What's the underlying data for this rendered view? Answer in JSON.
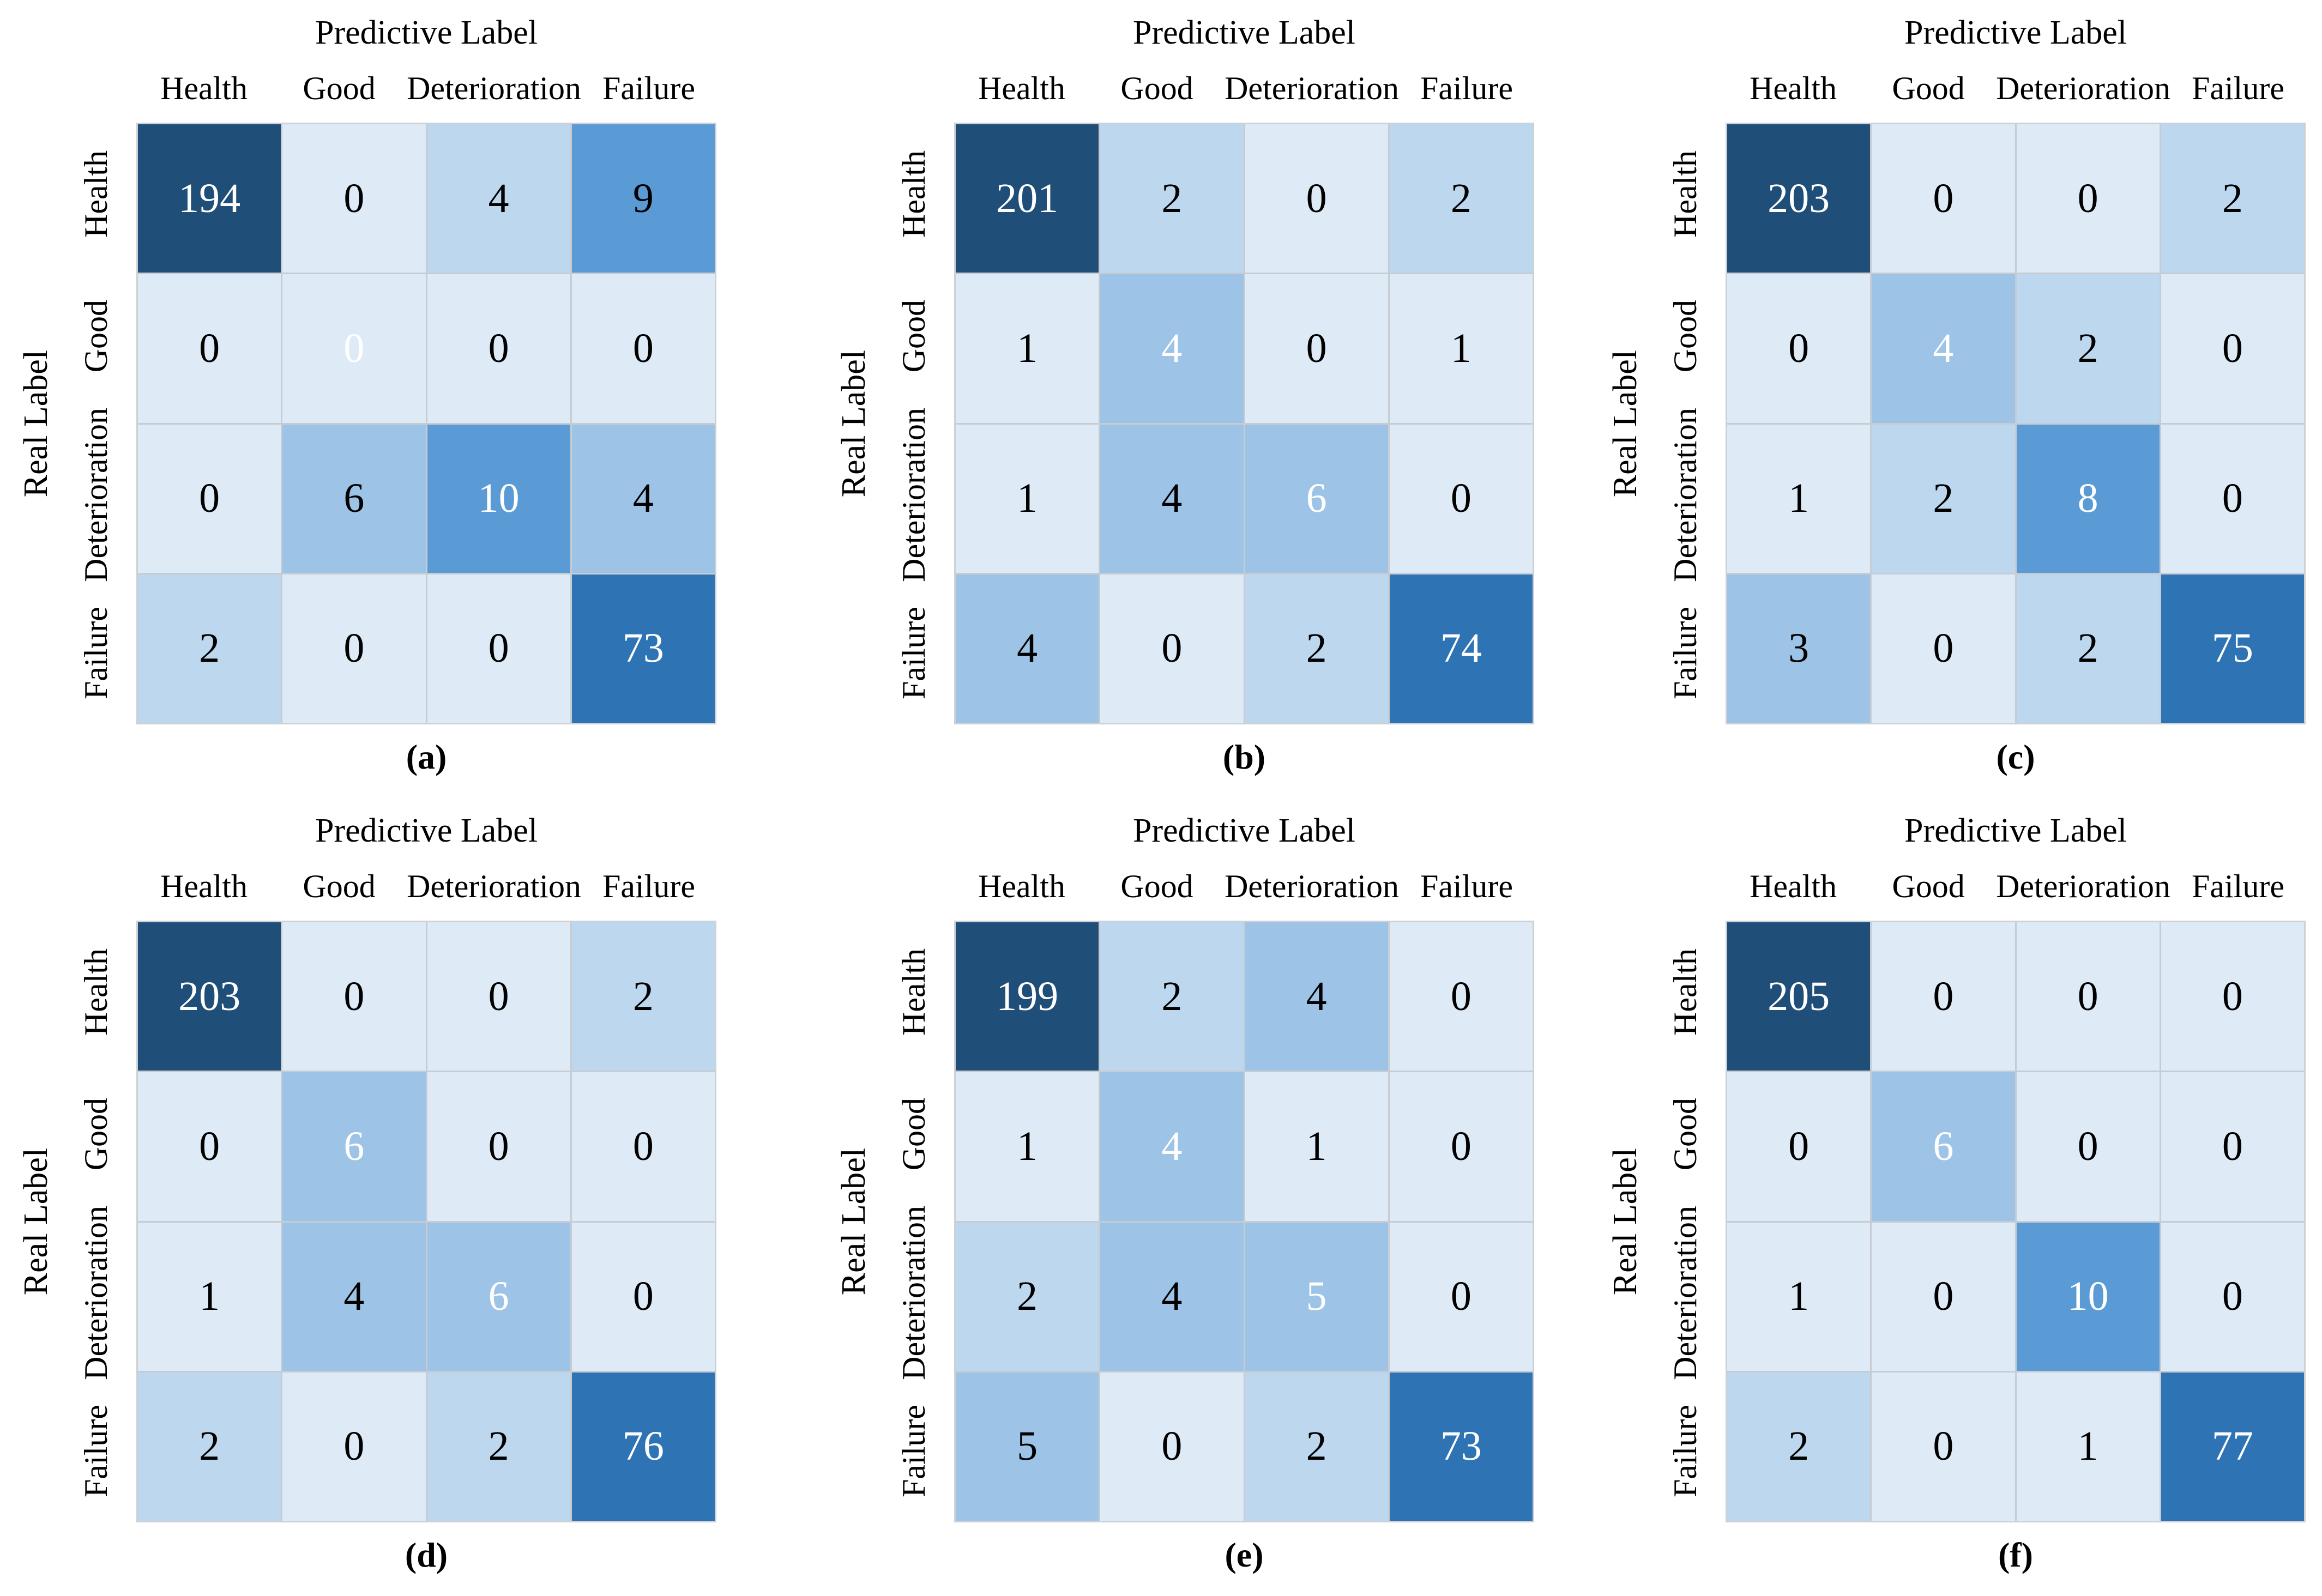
{
  "figure": {
    "x_axis_title": "Predictive Label",
    "y_axis_title": "Real Label",
    "class_labels": [
      "Health",
      "Good",
      "Deterioration",
      "Failure"
    ],
    "palette": {
      "diag_health_bg": "#1F4E79",
      "diag_failure_bg": "#2E74B5",
      "high_bg": "#5B9BD5",
      "medium_bg": "#9DC3E6",
      "low_bg": "#BDD7EE",
      "faint_bg": "#DEEBF7",
      "grid_line": "#C7CCD2",
      "diag_text": "#FFFFFF",
      "offdiag_text": "#000000"
    }
  },
  "chart_data": [
    {
      "type": "heatmap",
      "caption": "(a)",
      "caption_letter": "a",
      "xlabel": "Predictive Label",
      "ylabel": "Real Label",
      "x_categories": [
        "Health",
        "Good",
        "Deterioration",
        "Failure"
      ],
      "y_categories": [
        "Health",
        "Good",
        "Deterioration",
        "Failure"
      ],
      "values": [
        [
          194,
          0,
          4,
          9
        ],
        [
          0,
          0,
          0,
          0
        ],
        [
          0,
          6,
          10,
          4
        ],
        [
          2,
          0,
          0,
          73
        ]
      ],
      "cell_colors": [
        [
          "#1F4E79",
          "#DEEBF7",
          "#BDD7EE",
          "#5B9BD5"
        ],
        [
          "#DEEBF7",
          "#DEEBF7",
          "#DEEBF7",
          "#DEEBF7"
        ],
        [
          "#DEEBF7",
          "#9DC3E6",
          "#5B9BD5",
          "#9DC3E6"
        ],
        [
          "#BDD7EE",
          "#DEEBF7",
          "#DEEBF7",
          "#2E74B5"
        ]
      ]
    },
    {
      "type": "heatmap",
      "caption": "(b)",
      "caption_letter": "b",
      "xlabel": "Predictive Label",
      "ylabel": "Real Label",
      "x_categories": [
        "Health",
        "Good",
        "Deterioration",
        "Failure"
      ],
      "y_categories": [
        "Health",
        "Good",
        "Deterioration",
        "Failure"
      ],
      "values": [
        [
          201,
          2,
          0,
          2
        ],
        [
          1,
          4,
          0,
          1
        ],
        [
          1,
          4,
          6,
          0
        ],
        [
          4,
          0,
          2,
          74
        ]
      ],
      "cell_colors": [
        [
          "#1F4E79",
          "#BDD7EE",
          "#DEEBF7",
          "#BDD7EE"
        ],
        [
          "#DEEBF7",
          "#9DC3E6",
          "#DEEBF7",
          "#DEEBF7"
        ],
        [
          "#DEEBF7",
          "#9DC3E6",
          "#9DC3E6",
          "#DEEBF7"
        ],
        [
          "#9DC3E6",
          "#DEEBF7",
          "#BDD7EE",
          "#2E74B5"
        ]
      ]
    },
    {
      "type": "heatmap",
      "caption": "(c)",
      "caption_letter": "c",
      "xlabel": "Predictive Label",
      "ylabel": "Real Label",
      "x_categories": [
        "Health",
        "Good",
        "Deterioration",
        "Failure"
      ],
      "y_categories": [
        "Health",
        "Good",
        "Deterioration",
        "Failure"
      ],
      "values": [
        [
          203,
          0,
          0,
          2
        ],
        [
          0,
          4,
          2,
          0
        ],
        [
          1,
          2,
          8,
          0
        ],
        [
          3,
          0,
          2,
          75
        ]
      ],
      "cell_colors": [
        [
          "#1F4E79",
          "#DEEBF7",
          "#DEEBF7",
          "#BDD7EE"
        ],
        [
          "#DEEBF7",
          "#9DC3E6",
          "#BDD7EE",
          "#DEEBF7"
        ],
        [
          "#DEEBF7",
          "#BDD7EE",
          "#5B9BD5",
          "#DEEBF7"
        ],
        [
          "#9DC3E6",
          "#DEEBF7",
          "#BDD7EE",
          "#2E74B5"
        ]
      ]
    },
    {
      "type": "heatmap",
      "caption": "(d)",
      "caption_letter": "d",
      "xlabel": "Predictive Label",
      "ylabel": "Real Label",
      "x_categories": [
        "Health",
        "Good",
        "Deterioration",
        "Failure"
      ],
      "y_categories": [
        "Health",
        "Good",
        "Deterioration",
        "Failure"
      ],
      "values": [
        [
          203,
          0,
          0,
          2
        ],
        [
          0,
          6,
          0,
          0
        ],
        [
          1,
          4,
          6,
          0
        ],
        [
          2,
          0,
          2,
          76
        ]
      ],
      "cell_colors": [
        [
          "#1F4E79",
          "#DEEBF7",
          "#DEEBF7",
          "#BDD7EE"
        ],
        [
          "#DEEBF7",
          "#9DC3E6",
          "#DEEBF7",
          "#DEEBF7"
        ],
        [
          "#DEEBF7",
          "#9DC3E6",
          "#9DC3E6",
          "#DEEBF7"
        ],
        [
          "#BDD7EE",
          "#DEEBF7",
          "#BDD7EE",
          "#2E74B5"
        ]
      ]
    },
    {
      "type": "heatmap",
      "caption": "(e)",
      "caption_letter": "e",
      "xlabel": "Predictive Label",
      "ylabel": "Real Label",
      "x_categories": [
        "Health",
        "Good",
        "Deterioration",
        "Failure"
      ],
      "y_categories": [
        "Health",
        "Good",
        "Deterioration",
        "Failure"
      ],
      "values": [
        [
          199,
          2,
          4,
          0
        ],
        [
          1,
          4,
          1,
          0
        ],
        [
          2,
          4,
          5,
          0
        ],
        [
          5,
          0,
          2,
          73
        ]
      ],
      "cell_colors": [
        [
          "#1F4E79",
          "#BDD7EE",
          "#9DC3E6",
          "#DEEBF7"
        ],
        [
          "#DEEBF7",
          "#9DC3E6",
          "#DEEBF7",
          "#DEEBF7"
        ],
        [
          "#BDD7EE",
          "#9DC3E6",
          "#9DC3E6",
          "#DEEBF7"
        ],
        [
          "#9DC3E6",
          "#DEEBF7",
          "#BDD7EE",
          "#2E74B5"
        ]
      ]
    },
    {
      "type": "heatmap",
      "caption": "(f)",
      "caption_letter": "f",
      "xlabel": "Predictive Label",
      "ylabel": "Real Label",
      "x_categories": [
        "Health",
        "Good",
        "Deterioration",
        "Failure"
      ],
      "y_categories": [
        "Health",
        "Good",
        "Deterioration",
        "Failure"
      ],
      "values": [
        [
          205,
          0,
          0,
          0
        ],
        [
          0,
          6,
          0,
          0
        ],
        [
          1,
          0,
          10,
          0
        ],
        [
          2,
          0,
          1,
          77
        ]
      ],
      "cell_colors": [
        [
          "#1F4E79",
          "#DEEBF7",
          "#DEEBF7",
          "#DEEBF7"
        ],
        [
          "#DEEBF7",
          "#9DC3E6",
          "#DEEBF7",
          "#DEEBF7"
        ],
        [
          "#DEEBF7",
          "#DEEBF7",
          "#5B9BD5",
          "#DEEBF7"
        ],
        [
          "#BDD7EE",
          "#DEEBF7",
          "#DEEBF7",
          "#2E74B5"
        ]
      ]
    }
  ]
}
